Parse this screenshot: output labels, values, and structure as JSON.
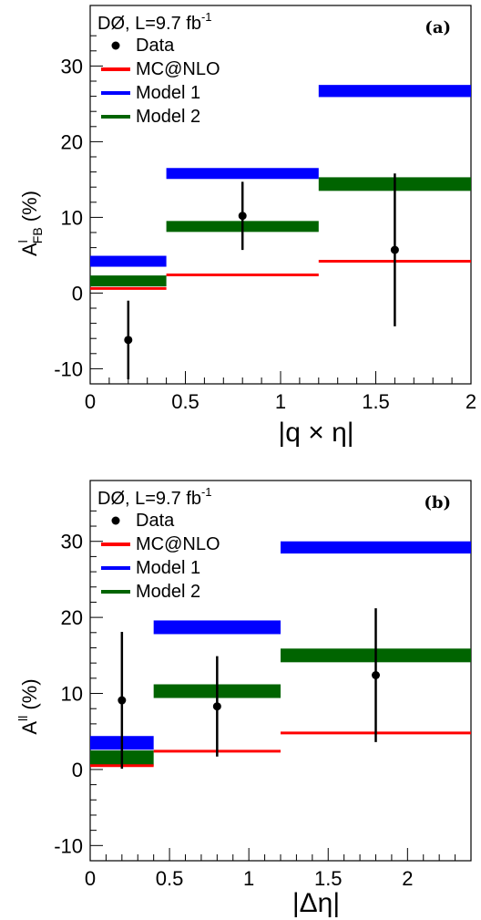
{
  "colors": {
    "data": "#000000",
    "mcnlo": "#ff0000",
    "model1": "#0000ff",
    "model2": "#006400"
  },
  "chart_data": [
    {
      "type": "bar",
      "panel_label": "(a)",
      "experiment": "DØ, L=9.7 fb",
      "lumi_exp": "-1",
      "xlabel": "|q × η|",
      "ylabel_main": "A",
      "ylabel_sup": "l",
      "ylabel_sub": "FB",
      "ylabel_unit": " (%)",
      "xlim": [
        0,
        2
      ],
      "ylim": [
        -12,
        38
      ],
      "xticks": [
        "0",
        "0.5",
        "1",
        "1.5",
        "2"
      ],
      "xtick_values": [
        0,
        0.5,
        1,
        1.5,
        2
      ],
      "yticks": [
        "-10",
        "0",
        "10",
        "20",
        "30"
      ],
      "ytick_values": [
        -10,
        0,
        10,
        20,
        30
      ],
      "bins": [
        [
          0,
          0.4
        ],
        [
          0.4,
          1.2
        ],
        [
          1.2,
          2.0
        ]
      ],
      "legend": [
        "Data",
        "MC@NLO",
        "Model 1",
        "Model 2"
      ],
      "series": [
        {
          "name": "MC@NLO",
          "kind": "line",
          "values": [
            0.6,
            2.4,
            4.2
          ],
          "unc": [
            0,
            0,
            0
          ]
        },
        {
          "name": "Model 1",
          "kind": "band",
          "values": [
            4.2,
            15.8,
            26.7
          ],
          "unc": [
            0.7,
            0.6,
            0.8
          ]
        },
        {
          "name": "Model 2",
          "kind": "band",
          "values": [
            1.6,
            8.8,
            14.4
          ],
          "unc": [
            0.6,
            0.6,
            0.9
          ]
        },
        {
          "name": "Data",
          "kind": "points",
          "x": [
            0.2,
            0.8,
            1.6
          ],
          "values": [
            -6.2,
            10.2,
            5.7
          ],
          "err": [
            5.2,
            4.5,
            10.1
          ]
        }
      ]
    },
    {
      "type": "bar",
      "panel_label": "(b)",
      "experiment": "DØ, L=9.7 fb",
      "lumi_exp": "-1",
      "xlabel": "|Δη|",
      "ylabel_main": "A",
      "ylabel_sup": "ll",
      "ylabel_sub": "",
      "ylabel_unit": " (%)",
      "xlim": [
        0,
        2.4
      ],
      "ylim": [
        -12,
        38
      ],
      "xticks": [
        "0",
        "0.5",
        "1",
        "1.5",
        "2"
      ],
      "xtick_values": [
        0,
        0.5,
        1,
        1.5,
        2
      ],
      "yticks": [
        "-10",
        "0",
        "10",
        "20",
        "30"
      ],
      "ytick_values": [
        -10,
        0,
        10,
        20,
        30
      ],
      "bins": [
        [
          0,
          0.4
        ],
        [
          0.4,
          1.2
        ],
        [
          1.2,
          2.4
        ]
      ],
      "legend": [
        "Data",
        "MC@NLO",
        "Model 1",
        "Model 2"
      ],
      "series": [
        {
          "name": "MC@NLO",
          "kind": "line",
          "values": [
            0.5,
            2.4,
            4.8
          ],
          "unc": [
            0,
            0,
            0
          ]
        },
        {
          "name": "Model 1",
          "kind": "band",
          "values": [
            3.5,
            18.7,
            29.2
          ],
          "unc": [
            0.9,
            0.9,
            0.8
          ]
        },
        {
          "name": "Model 2",
          "kind": "band",
          "values": [
            1.5,
            10.3,
            15.0
          ],
          "unc": [
            1.0,
            0.9,
            0.9
          ]
        },
        {
          "name": "Data",
          "kind": "points",
          "x": [
            0.2,
            0.8,
            1.8
          ],
          "values": [
            9.1,
            8.3,
            12.4
          ],
          "err": [
            9.0,
            6.6,
            8.8
          ]
        }
      ]
    }
  ]
}
